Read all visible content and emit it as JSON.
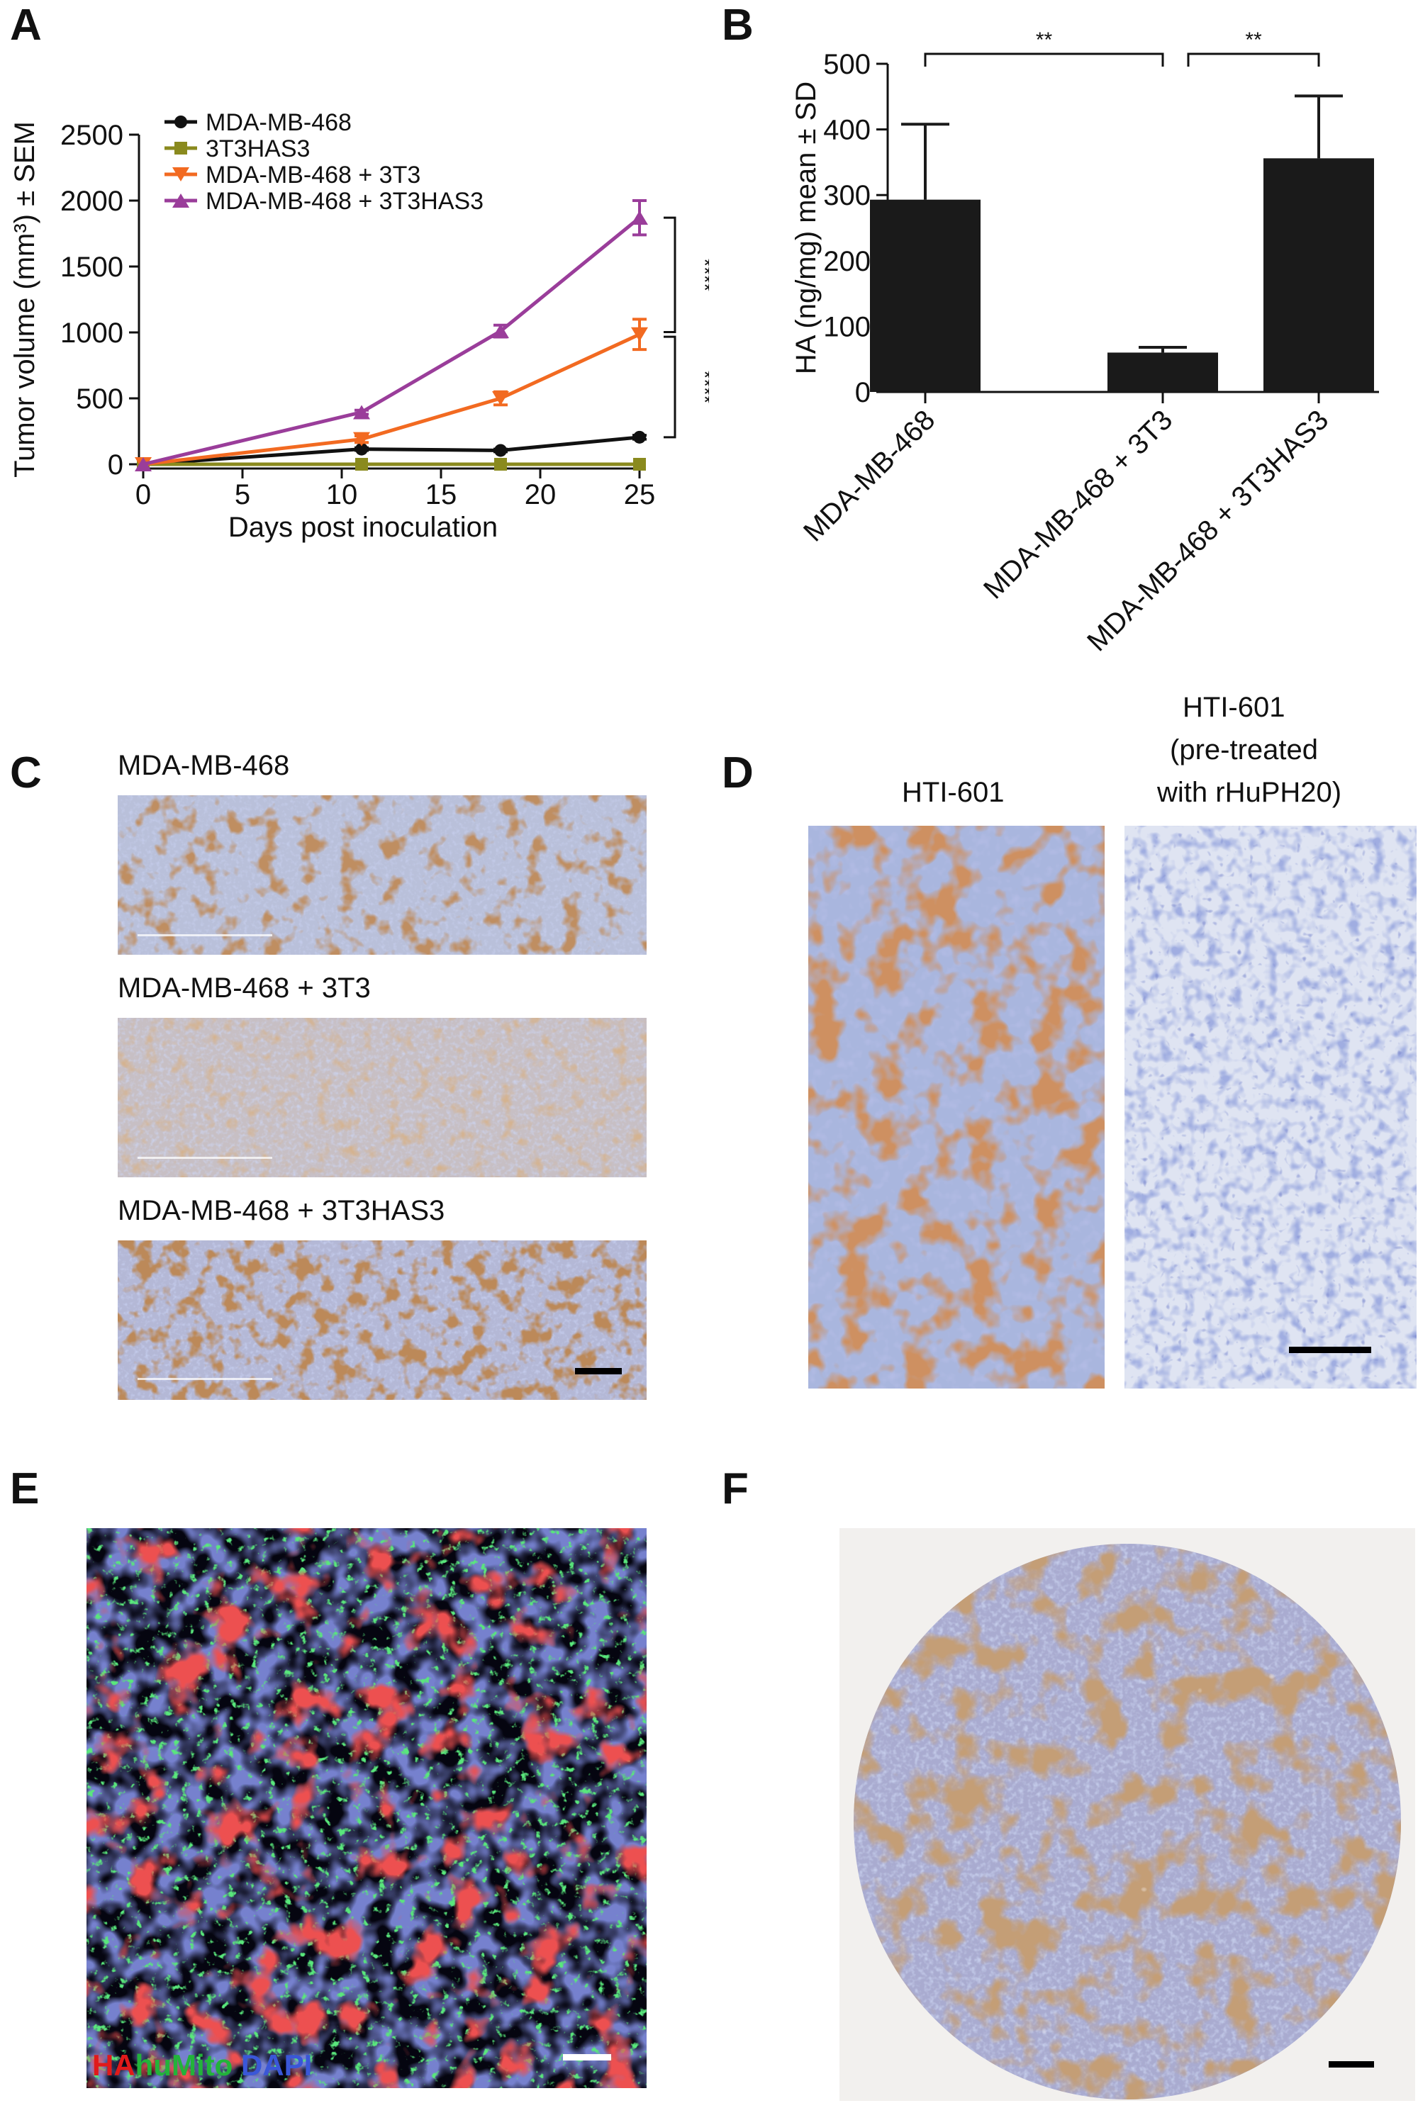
{
  "figure": {
    "panels": {
      "A": "A",
      "B": "B",
      "C": "C",
      "D": "D",
      "E": "E",
      "F": "F"
    },
    "panel_c": {
      "labels": [
        "MDA-MB-468",
        "MDA-MB-468 + 3T3",
        "MDA-MB-468 + 3T3HAS3"
      ]
    },
    "panel_d": {
      "label_left": "HTI-601",
      "label_right_lines": [
        "HTI-601",
        "(pre-treated",
        "with rHuPH20)"
      ]
    },
    "panel_e": {
      "legend": [
        {
          "text": "HA",
          "color": "#e01a1a"
        },
        {
          "text": "huMito",
          "color": "#22b33a"
        },
        {
          "text": "DAPI",
          "color": "#3a57d8"
        }
      ]
    }
  },
  "chart_data": [
    {
      "id": "A",
      "type": "line",
      "xlabel": "Days post inoculation",
      "ylabel": "Tumor volume (mm³) ± SEM",
      "xlim": [
        0,
        25
      ],
      "ylim": [
        0,
        2500
      ],
      "xticks": [
        0,
        5,
        10,
        15,
        20,
        25
      ],
      "yticks": [
        0,
        500,
        1000,
        1500,
        2000,
        2500
      ],
      "x": [
        0,
        11,
        18,
        25
      ],
      "series": [
        {
          "name": "MDA-MB-468",
          "values": [
            0,
            115,
            105,
            205
          ],
          "errors": [
            0,
            10,
            10,
            15
          ],
          "color": "#111111",
          "marker": "circle"
        },
        {
          "name": "3T3HAS3",
          "values": [
            0,
            0,
            0,
            0
          ],
          "errors": [
            0,
            0,
            0,
            0
          ],
          "color": "#8a8a1e",
          "marker": "square"
        },
        {
          "name": "MDA-MB-468 + 3T3",
          "values": [
            0,
            190,
            500,
            985
          ],
          "errors": [
            0,
            25,
            50,
            115
          ],
          "color": "#f26a21",
          "marker": "triangle-down"
        },
        {
          "name": "MDA-MB-468 + 3T3HAS3",
          "values": [
            0,
            395,
            1010,
            1870
          ],
          "errors": [
            0,
            15,
            45,
            130
          ],
          "color": "#9a3d9a",
          "marker": "triangle-up"
        }
      ],
      "annotations": [
        "****",
        "****"
      ],
      "legend": "top-left"
    },
    {
      "id": "B",
      "type": "bar",
      "ylabel": "HA (ng/mg) mean ± SD",
      "categories": [
        "MDA-MB-468",
        "MDA-MB-468 + 3T3",
        "MDA-MB-468 + 3T3HAS3"
      ],
      "values": [
        293,
        60,
        356
      ],
      "errors": [
        115,
        8,
        95
      ],
      "ylim": [
        0,
        500
      ],
      "yticks": [
        0,
        100,
        200,
        300,
        400,
        500
      ],
      "color": "#1a1a1a",
      "annotations": [
        "**",
        "**"
      ]
    }
  ]
}
